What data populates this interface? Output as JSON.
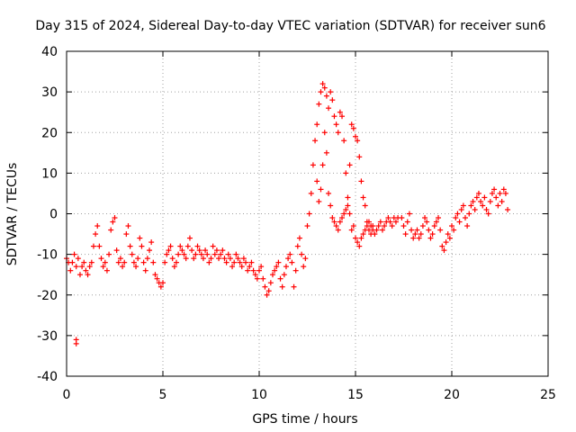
{
  "chart_data": {
    "type": "scatter",
    "title": "Day 315 of 2024, Sidereal Day-to-day VTEC variation (SDTVAR) for receiver sun6",
    "xlabel": "GPS time / hours",
    "ylabel": "SDTVAR / TECUs",
    "xlim": [
      0,
      25
    ],
    "ylim": [
      -40,
      40
    ],
    "xticks": [
      0,
      5,
      10,
      15,
      20,
      25
    ],
    "yticks": [
      -40,
      -30,
      -20,
      -10,
      0,
      10,
      20,
      30,
      40
    ],
    "xtick_labels": [
      "0",
      "5",
      "10",
      "15",
      "20",
      "25"
    ],
    "ytick_labels": [
      "-40",
      "-30",
      "-20",
      "-10",
      "0",
      "10",
      "20",
      "30",
      "40"
    ],
    "grid": true,
    "marker": "+",
    "series": [
      {
        "name": "SDTVAR",
        "color": "#ff0000",
        "points": [
          [
            0.0,
            -11
          ],
          [
            0.1,
            -12
          ],
          [
            0.2,
            -14
          ],
          [
            0.3,
            -12
          ],
          [
            0.4,
            -10
          ],
          [
            0.5,
            -13
          ],
          [
            0.5,
            -31
          ],
          [
            0.5,
            -32
          ],
          [
            0.6,
            -11
          ],
          [
            0.7,
            -15
          ],
          [
            0.8,
            -13
          ],
          [
            0.9,
            -12
          ],
          [
            1.0,
            -14
          ],
          [
            1.1,
            -15
          ],
          [
            1.2,
            -13
          ],
          [
            1.3,
            -12
          ],
          [
            1.4,
            -8
          ],
          [
            1.5,
            -5
          ],
          [
            1.6,
            -3
          ],
          [
            1.7,
            -8
          ],
          [
            1.8,
            -11
          ],
          [
            1.9,
            -13
          ],
          [
            2.0,
            -12
          ],
          [
            2.1,
            -14
          ],
          [
            2.2,
            -10
          ],
          [
            2.3,
            -4
          ],
          [
            2.4,
            -2
          ],
          [
            2.5,
            -1
          ],
          [
            2.6,
            -9
          ],
          [
            2.7,
            -12
          ],
          [
            2.8,
            -11
          ],
          [
            2.9,
            -13
          ],
          [
            3.0,
            -12
          ],
          [
            3.1,
            -5
          ],
          [
            3.2,
            -3
          ],
          [
            3.3,
            -8
          ],
          [
            3.4,
            -10
          ],
          [
            3.5,
            -12
          ],
          [
            3.6,
            -13
          ],
          [
            3.7,
            -11
          ],
          [
            3.8,
            -6
          ],
          [
            3.9,
            -8
          ],
          [
            4.0,
            -12
          ],
          [
            4.1,
            -14
          ],
          [
            4.2,
            -11
          ],
          [
            4.3,
            -9
          ],
          [
            4.4,
            -7
          ],
          [
            4.5,
            -12
          ],
          [
            4.6,
            -15
          ],
          [
            4.7,
            -16
          ],
          [
            4.8,
            -17
          ],
          [
            4.9,
            -18
          ],
          [
            5.0,
            -17
          ],
          [
            5.1,
            -12
          ],
          [
            5.2,
            -10
          ],
          [
            5.3,
            -9
          ],
          [
            5.4,
            -8
          ],
          [
            5.5,
            -11
          ],
          [
            5.6,
            -13
          ],
          [
            5.7,
            -12
          ],
          [
            5.8,
            -10
          ],
          [
            5.9,
            -8
          ],
          [
            6.0,
            -9
          ],
          [
            6.1,
            -10
          ],
          [
            6.2,
            -11
          ],
          [
            6.3,
            -8
          ],
          [
            6.4,
            -6
          ],
          [
            6.5,
            -9
          ],
          [
            6.6,
            -11
          ],
          [
            6.7,
            -10
          ],
          [
            6.8,
            -8
          ],
          [
            6.9,
            -9
          ],
          [
            7.0,
            -10
          ],
          [
            7.1,
            -11
          ],
          [
            7.2,
            -9
          ],
          [
            7.3,
            -10
          ],
          [
            7.4,
            -12
          ],
          [
            7.5,
            -11
          ],
          [
            7.6,
            -8
          ],
          [
            7.7,
            -10
          ],
          [
            7.8,
            -9
          ],
          [
            7.9,
            -11
          ],
          [
            8.0,
            -10
          ],
          [
            8.1,
            -9
          ],
          [
            8.2,
            -11
          ],
          [
            8.3,
            -12
          ],
          [
            8.4,
            -10
          ],
          [
            8.5,
            -11
          ],
          [
            8.6,
            -13
          ],
          [
            8.7,
            -12
          ],
          [
            8.8,
            -10
          ],
          [
            8.9,
            -11
          ],
          [
            9.0,
            -12
          ],
          [
            9.1,
            -13
          ],
          [
            9.2,
            -11
          ],
          [
            9.3,
            -12
          ],
          [
            9.4,
            -14
          ],
          [
            9.5,
            -13
          ],
          [
            9.6,
            -12
          ],
          [
            9.7,
            -14
          ],
          [
            9.8,
            -15
          ],
          [
            9.9,
            -16
          ],
          [
            10.0,
            -14
          ],
          [
            10.1,
            -13
          ],
          [
            10.2,
            -16
          ],
          [
            10.3,
            -18
          ],
          [
            10.4,
            -20
          ],
          [
            10.5,
            -19
          ],
          [
            10.6,
            -17
          ],
          [
            10.7,
            -15
          ],
          [
            10.8,
            -14
          ],
          [
            10.9,
            -13
          ],
          [
            11.0,
            -12
          ],
          [
            11.1,
            -16
          ],
          [
            11.2,
            -18
          ],
          [
            11.3,
            -15
          ],
          [
            11.4,
            -13
          ],
          [
            11.5,
            -11
          ],
          [
            11.6,
            -10
          ],
          [
            11.7,
            -12
          ],
          [
            11.8,
            -18
          ],
          [
            11.9,
            -14
          ],
          [
            12.0,
            -8
          ],
          [
            12.1,
            -6
          ],
          [
            12.2,
            -10
          ],
          [
            12.3,
            -13
          ],
          [
            12.4,
            -11
          ],
          [
            12.5,
            -3
          ],
          [
            12.6,
            0
          ],
          [
            12.7,
            5
          ],
          [
            12.8,
            12
          ],
          [
            12.9,
            18
          ],
          [
            13.0,
            22
          ],
          [
            13.1,
            27
          ],
          [
            13.2,
            30
          ],
          [
            13.3,
            32
          ],
          [
            13.4,
            31
          ],
          [
            13.5,
            29
          ],
          [
            13.6,
            26
          ],
          [
            13.7,
            30
          ],
          [
            13.8,
            28
          ],
          [
            13.9,
            24
          ],
          [
            13.0,
            8
          ],
          [
            13.1,
            3
          ],
          [
            13.2,
            6
          ],
          [
            13.3,
            12
          ],
          [
            13.4,
            20
          ],
          [
            13.5,
            15
          ],
          [
            13.6,
            5
          ],
          [
            13.7,
            2
          ],
          [
            13.8,
            -1
          ],
          [
            13.9,
            -2
          ],
          [
            14.0,
            22
          ],
          [
            14.1,
            20
          ],
          [
            14.2,
            25
          ],
          [
            14.3,
            24
          ],
          [
            14.4,
            18
          ],
          [
            14.5,
            10
          ],
          [
            14.6,
            4
          ],
          [
            14.7,
            0
          ],
          [
            14.8,
            -4
          ],
          [
            14.9,
            -3
          ],
          [
            14.0,
            -3
          ],
          [
            14.1,
            -4
          ],
          [
            14.2,
            -2
          ],
          [
            14.3,
            -1
          ],
          [
            14.4,
            0
          ],
          [
            14.5,
            1
          ],
          [
            14.6,
            2
          ],
          [
            14.7,
            12
          ],
          [
            14.8,
            22
          ],
          [
            14.9,
            21
          ],
          [
            15.0,
            19
          ],
          [
            15.1,
            18
          ],
          [
            15.2,
            14
          ],
          [
            15.3,
            8
          ],
          [
            15.4,
            4
          ],
          [
            15.5,
            2
          ],
          [
            15.6,
            -2
          ],
          [
            15.7,
            -4
          ],
          [
            15.8,
            -3
          ],
          [
            15.9,
            -4
          ],
          [
            15.0,
            -6
          ],
          [
            15.1,
            -7
          ],
          [
            15.2,
            -8
          ],
          [
            15.3,
            -6
          ],
          [
            15.4,
            -5
          ],
          [
            15.5,
            -4
          ],
          [
            15.6,
            -3
          ],
          [
            15.7,
            -2
          ],
          [
            15.8,
            -5
          ],
          [
            15.9,
            -3
          ],
          [
            16.0,
            -5
          ],
          [
            16.1,
            -4
          ],
          [
            16.2,
            -3
          ],
          [
            16.3,
            -2
          ],
          [
            16.4,
            -4
          ],
          [
            16.5,
            -3
          ],
          [
            16.6,
            -2
          ],
          [
            16.7,
            -1
          ],
          [
            16.8,
            -2
          ],
          [
            16.9,
            -3
          ],
          [
            17.0,
            -1
          ],
          [
            17.1,
            -2
          ],
          [
            17.2,
            -1
          ],
          [
            17.4,
            -1
          ],
          [
            17.5,
            -3
          ],
          [
            17.6,
            -5
          ],
          [
            17.7,
            -2
          ],
          [
            17.8,
            0
          ],
          [
            17.9,
            -4
          ],
          [
            18.0,
            -6
          ],
          [
            18.1,
            -5
          ],
          [
            18.2,
            -4
          ],
          [
            18.3,
            -6
          ],
          [
            18.4,
            -5
          ],
          [
            18.5,
            -3
          ],
          [
            18.6,
            -1
          ],
          [
            18.7,
            -2
          ],
          [
            18.8,
            -4
          ],
          [
            18.9,
            -6
          ],
          [
            19.0,
            -5
          ],
          [
            19.1,
            -3
          ],
          [
            19.2,
            -2
          ],
          [
            19.3,
            -1
          ],
          [
            19.4,
            -4
          ],
          [
            19.5,
            -8
          ],
          [
            19.6,
            -9
          ],
          [
            19.7,
            -7
          ],
          [
            19.8,
            -5
          ],
          [
            19.9,
            -6
          ],
          [
            20.0,
            -3
          ],
          [
            20.1,
            -4
          ],
          [
            20.2,
            -1
          ],
          [
            20.3,
            0
          ],
          [
            20.4,
            -2
          ],
          [
            20.5,
            1
          ],
          [
            20.6,
            2
          ],
          [
            20.7,
            -1
          ],
          [
            20.8,
            -3
          ],
          [
            20.9,
            0
          ],
          [
            21.0,
            2
          ],
          [
            21.1,
            3
          ],
          [
            21.2,
            1
          ],
          [
            21.3,
            4
          ],
          [
            21.4,
            5
          ],
          [
            21.5,
            3
          ],
          [
            21.6,
            2
          ],
          [
            21.7,
            4
          ],
          [
            21.8,
            1
          ],
          [
            21.9,
            0
          ],
          [
            22.0,
            3
          ],
          [
            22.1,
            5
          ],
          [
            22.2,
            6
          ],
          [
            22.3,
            4
          ],
          [
            22.4,
            2
          ],
          [
            22.5,
            5
          ],
          [
            22.6,
            3
          ],
          [
            22.7,
            6
          ],
          [
            22.8,
            5
          ],
          [
            22.9,
            1
          ]
        ]
      }
    ]
  }
}
